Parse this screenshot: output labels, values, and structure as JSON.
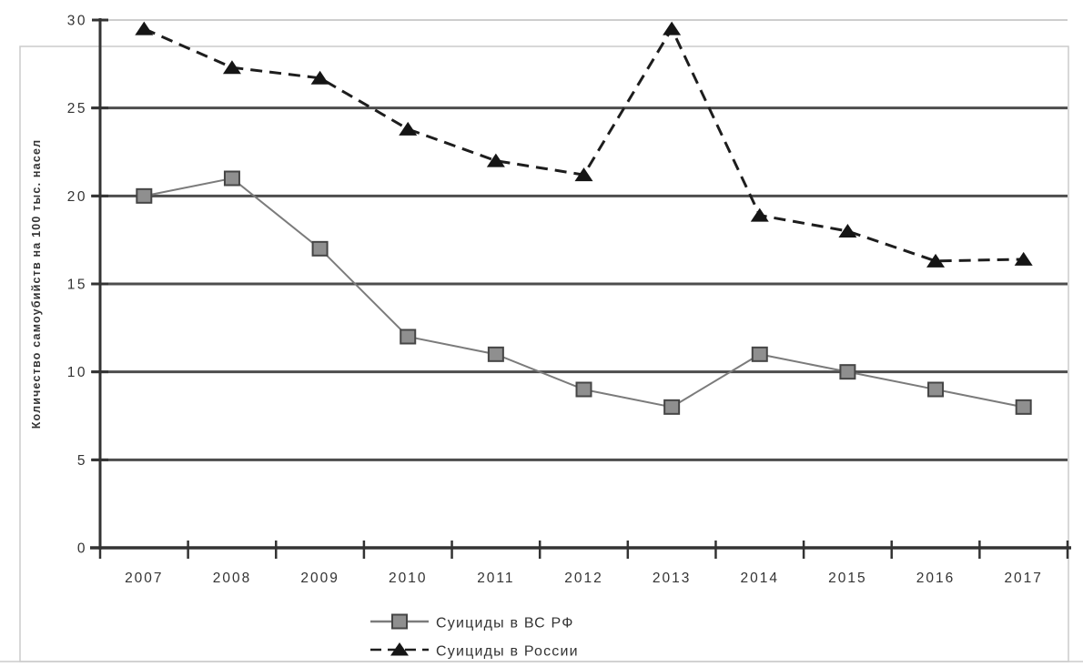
{
  "chart_data": {
    "type": "line",
    "title": "",
    "xlabel": "",
    "ylabel": "Количество самоубийств на 100 тыс. насел",
    "ylim": [
      0,
      30
    ],
    "ytick_step": 5,
    "yticks": [
      0,
      5,
      10,
      15,
      20,
      25,
      30
    ],
    "grid": true,
    "legend_position": "bottom-center",
    "categories": [
      "2007",
      "2008",
      "2009",
      "2010",
      "2011",
      "2012",
      "2013",
      "2014",
      "2015",
      "2016",
      "2017"
    ],
    "series": [
      {
        "name": "Суициды в ВС РФ",
        "marker": "square",
        "line_style": "solid",
        "values": [
          20,
          21,
          17,
          12,
          11,
          9,
          8,
          11,
          10,
          9,
          8
        ]
      },
      {
        "name": "Суициды в России",
        "marker": "triangle",
        "line_style": "dashed",
        "values": [
          29.5,
          27.3,
          26.7,
          23.8,
          22.0,
          21.2,
          29.5,
          18.9,
          18.0,
          16.3,
          16.4
        ]
      }
    ]
  },
  "colors": {
    "background": "#ffffff",
    "gridline": "#4d4d4d",
    "gridline_top_light": "#bdbdbd",
    "axis": "#333333",
    "text": "#333333",
    "outer_border": "#cccccc",
    "vs_rf_line": "#7b7b7b",
    "vs_rf_marker_fill": "#8f8f8f",
    "vs_rf_marker_stroke": "#454545",
    "russia_line": "#1d1d1d",
    "russia_marker_fill": "#151515"
  }
}
